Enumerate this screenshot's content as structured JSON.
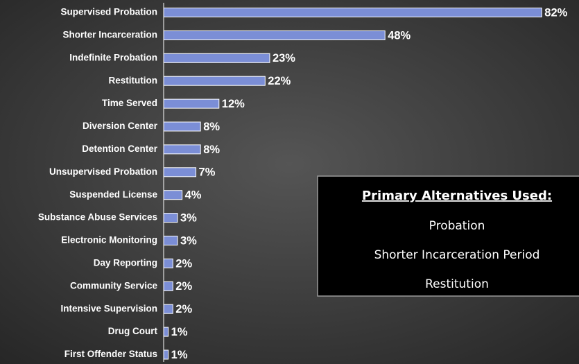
{
  "chart_data": {
    "type": "barh",
    "categories": [
      "Supervised Probation",
      "Shorter Incarceration",
      "Indefinite Probation",
      "Restitution",
      "Time Served",
      "Diversion Center",
      "Detention Center",
      "Unsupervised Probation",
      "Suspended License",
      "Substance Abuse Services",
      "Electronic Monitoring",
      "Day Reporting",
      "Community Service",
      "Intensive Supervision",
      "Drug Court",
      "First Offender Status"
    ],
    "values": [
      82,
      48,
      23,
      22,
      12,
      8,
      8,
      7,
      4,
      3,
      3,
      2,
      2,
      2,
      1,
      1
    ],
    "value_labels": [
      "82%",
      "48%",
      "23%",
      "22%",
      "12%",
      "8%",
      "8%",
      "7%",
      "4%",
      "3%",
      "3%",
      "2%",
      "2%",
      "2%",
      "1%",
      "1%"
    ],
    "color": "#7b8ed6",
    "annotation": {
      "title": "Primary Alternatives Used:",
      "items": [
        "Probation",
        "Shorter Incarceration Period",
        "Restitution"
      ]
    }
  }
}
